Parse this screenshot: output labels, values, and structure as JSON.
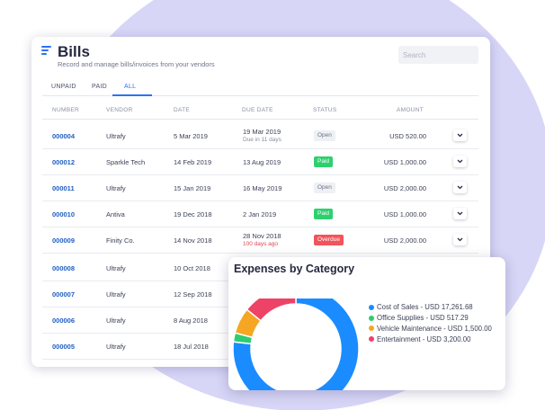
{
  "header": {
    "title": "Bills",
    "subtitle": "Record and manage bills/invoices from your vendors",
    "search_placeholder": "Search"
  },
  "tabs": [
    {
      "label": "UNPAID",
      "active": false
    },
    {
      "label": "PAID",
      "active": false
    },
    {
      "label": "ALL",
      "active": true
    }
  ],
  "columns": {
    "number": "NUMBER",
    "vendor": "VENDOR",
    "date": "DATE",
    "due_date": "DUE DATE",
    "status": "STATUS",
    "amount": "AMOUNT"
  },
  "rows": [
    {
      "number": "000004",
      "vendor": "Ultrafy",
      "date": "5 Mar 2019",
      "due": "19 Mar 2019",
      "due_note": "Due in 11 days",
      "status": "Open",
      "amount": "USD 520.00"
    },
    {
      "number": "000012",
      "vendor": "Sparkle Tech",
      "date": "14 Feb 2019",
      "due": "13 Aug 2019",
      "due_note": "",
      "status": "Paid",
      "amount": "USD 1,000.00"
    },
    {
      "number": "000011",
      "vendor": "Ultrafy",
      "date": "15 Jan 2019",
      "due": "16 May 2019",
      "due_note": "",
      "status": "Open",
      "amount": "USD 2,000.00"
    },
    {
      "number": "000010",
      "vendor": "Antiva",
      "date": "19 Dec 2018",
      "due": "2 Jan 2019",
      "due_note": "",
      "status": "Paid",
      "amount": "USD 1,000.00"
    },
    {
      "number": "000009",
      "vendor": "Finity Co.",
      "date": "14 Nov 2018",
      "due": "28 Nov 2018",
      "due_note": "100 days ago",
      "status": "Overdue",
      "amount": "USD 2,000.00"
    },
    {
      "number": "000008",
      "vendor": "Ultrafy",
      "date": "10 Oct 2018",
      "due": "",
      "due_note": "",
      "status": "",
      "amount": ""
    },
    {
      "number": "000007",
      "vendor": "Ultrafy",
      "date": "12 Sep 2018",
      "due": "",
      "due_note": "",
      "status": "",
      "amount": ""
    },
    {
      "number": "000006",
      "vendor": "Ultrafy",
      "date": "8 Aug 2018",
      "due": "",
      "due_note": "",
      "status": "",
      "amount": ""
    },
    {
      "number": "000005",
      "vendor": "Ultrafy",
      "date": "18 Jul 2018",
      "due": "",
      "due_note": "",
      "status": "",
      "amount": ""
    }
  ],
  "colors": {
    "accent": "#2a73f5",
    "paid": "#2ed06e",
    "overdue": "#f2545b",
    "open": "#eef0f4"
  },
  "expenses": {
    "title": "Expenses by Category"
  },
  "chart_data": {
    "type": "pie",
    "variant": "donut",
    "title": "Expenses by Category",
    "series": [
      {
        "name": "Cost of Sales - USD 17,261.68",
        "value": 17261.68,
        "color": "#1a8cff"
      },
      {
        "name": "Office Supplies - USD 517.29",
        "value": 517.29,
        "color": "#2ecc71"
      },
      {
        "name": "Vehicle Maintenance - USD 1,500.00",
        "value": 1500.0,
        "color": "#f5a623"
      },
      {
        "name": "Entertainment - USD 3,200.00",
        "value": 3200.0,
        "color": "#ee4266"
      }
    ],
    "legend": "right"
  }
}
